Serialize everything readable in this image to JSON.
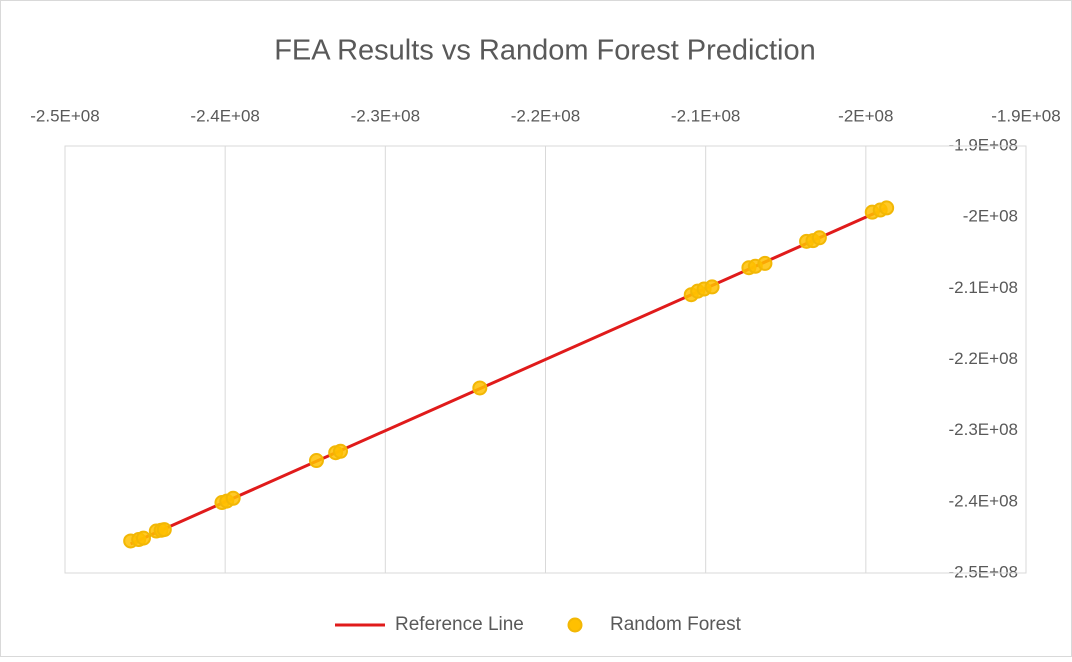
{
  "chart_data": {
    "type": "scatter",
    "title": "FEA Results vs Random Forest Prediction",
    "xlim": [
      -250000000,
      -190000000
    ],
    "xticks": [
      {
        "value": -250000000,
        "label": "-2.5E+08"
      },
      {
        "value": -240000000,
        "label": "-2.4E+08"
      },
      {
        "value": -230000000,
        "label": "-2.3E+08"
      },
      {
        "value": -220000000,
        "label": "-2.2E+08"
      },
      {
        "value": -210000000,
        "label": "-2.1E+08"
      },
      {
        "value": -200000000,
        "label": "-2E+08"
      },
      {
        "value": -190000000,
        "label": "-1.9E+08"
      }
    ],
    "ylim": [
      -250000000,
      -190000000
    ],
    "yticks": [
      {
        "value": -250000000,
        "label": "-2.5E+08"
      },
      {
        "value": -240000000,
        "label": "-2.4E+08"
      },
      {
        "value": -230000000,
        "label": "-2.3E+08"
      },
      {
        "value": -220000000,
        "label": "-2.2E+08"
      },
      {
        "value": -210000000,
        "label": "-2.1E+08"
      },
      {
        "value": -200000000,
        "label": "-2E+08"
      },
      {
        "value": -190000000,
        "label": "-1.9E+08"
      }
    ],
    "grid": "x",
    "series": [
      {
        "name": "Reference Line",
        "color": "#e01b1b",
        "mode": "line",
        "x": [
          -245900000,
          -198700000
        ],
        "values": [
          -245900000,
          -198700000
        ]
      },
      {
        "name": "Random Forest",
        "color": "#ffc000",
        "mode": "markers",
        "x": [
          -245900000,
          -245400000,
          -245100000,
          -244300000,
          -244000000,
          -243800000,
          -240200000,
          -239900000,
          -239500000,
          -234300000,
          -233100000,
          -232800000,
          -224100000,
          -210900000,
          -210500000,
          -210100000,
          -209600000,
          -207300000,
          -206900000,
          -206300000,
          -203700000,
          -203300000,
          -202900000,
          -199600000,
          -199100000,
          -198700000
        ],
        "values": [
          -245500000,
          -245300000,
          -245100000,
          -244100000,
          -244000000,
          -243900000,
          -240100000,
          -239900000,
          -239500000,
          -234200000,
          -233100000,
          -232900000,
          -224000000,
          -210900000,
          -210400000,
          -210100000,
          -209800000,
          -207100000,
          -206900000,
          -206500000,
          -203400000,
          -203300000,
          -202900000,
          -199300000,
          -199000000,
          -198700000
        ]
      }
    ]
  }
}
